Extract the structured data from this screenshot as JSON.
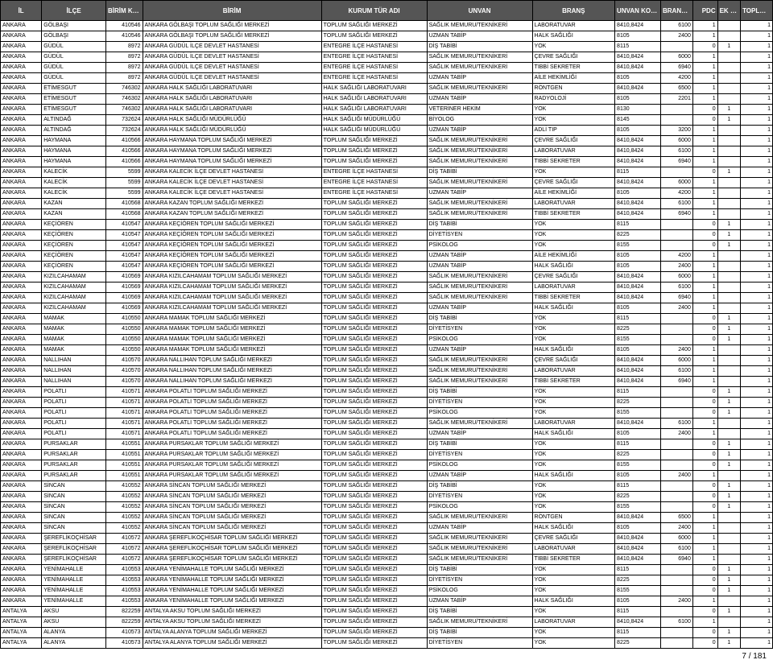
{
  "page_number": "7 / 181",
  "headers": [
    "İL",
    "İLÇE",
    "BİRİM KODU",
    "BİRİM",
    "KURUM TÜR ADI",
    "UNVAN",
    "BRANŞ",
    "UNVAN KODU",
    "BRANŞ KODU",
    "PDC",
    "EK PDC*",
    "TOPLAM PDC"
  ],
  "rows": [
    [
      "ANKARA",
      "GÖLBAŞI",
      "410546",
      "ANKARA GÖLBAŞI TOPLUM SAĞLIĞI MERKEZİ",
      "TOPLUM SAĞLIĞI MERKEZİ",
      "SAĞLIK MEMURU/TEKNİKERİ",
      "LABORATUVAR",
      "8410,8424",
      "6100",
      "1",
      "",
      "1"
    ],
    [
      "ANKARA",
      "GÖLBAŞI",
      "410546",
      "ANKARA GÖLBAŞI TOPLUM SAĞLIĞI MERKEZİ",
      "TOPLUM SAĞLIĞI MERKEZİ",
      "UZMAN TABİP",
      "HALK SAĞLIĞI",
      "8105",
      "2400",
      "1",
      "",
      "1"
    ],
    [
      "ANKARA",
      "GÜDÜL",
      "8972",
      "ANKARA GÜDÜL İLÇE DEVLET HASTANESİ",
      "ENTEGRE İLÇE HASTANESİ",
      "DİŞ TABİBİ",
      "YOK",
      "8115",
      "",
      "0",
      "1",
      "1"
    ],
    [
      "ANKARA",
      "GÜDÜL",
      "8972",
      "ANKARA GÜDÜL İLÇE DEVLET HASTANESİ",
      "ENTEGRE İLÇE HASTANESİ",
      "SAĞLIK MEMURU/TEKNİKERİ",
      "ÇEVRE SAĞLIĞI",
      "8410,8424",
      "6000",
      "1",
      "",
      "1"
    ],
    [
      "ANKARA",
      "GÜDÜL",
      "8972",
      "ANKARA GÜDÜL İLÇE DEVLET HASTANESİ",
      "ENTEGRE İLÇE HASTANESİ",
      "SAĞLIK MEMURU/TEKNİKERİ",
      "TIBBİ SEKRETER",
      "8410,8424",
      "6940",
      "1",
      "",
      "1"
    ],
    [
      "ANKARA",
      "GÜDÜL",
      "8972",
      "ANKARA GÜDÜL İLÇE DEVLET HASTANESİ",
      "ENTEGRE İLÇE HASTANESİ",
      "UZMAN TABİP",
      "AİLE HEKİMLİĞİ",
      "8105",
      "4200",
      "1",
      "",
      "1"
    ],
    [
      "ANKARA",
      "ETİMESGUT",
      "746302",
      "ANKARA HALK SAĞLIĞI LABORATUVARI",
      "HALK SAĞLIĞI LABORATUVARI",
      "SAĞLIK MEMURU/TEKNİKERİ",
      "RÖNTGEN",
      "8410,8424",
      "6500",
      "1",
      "",
      "1"
    ],
    [
      "ANKARA",
      "ETİMESGUT",
      "746302",
      "ANKARA HALK SAĞLIĞI LABORATUVARI",
      "HALK SAĞLIĞI LABORATUVARI",
      "UZMAN TABİP",
      "RADYOLOJİ",
      "8105",
      "2201",
      "1",
      "",
      "1"
    ],
    [
      "ANKARA",
      "ETİMESGUT",
      "746302",
      "ANKARA HALK SAĞLIĞI LABORATUVARI",
      "HALK SAĞLIĞI LABORATUVARI",
      "VETERİNER HEKİM",
      "YOK",
      "8130",
      "",
      "0",
      "1",
      "1"
    ],
    [
      "ANKARA",
      "ALTINDAĞ",
      "732624",
      "ANKARA HALK SAĞLIĞI MÜDÜRLÜĞÜ",
      "HALK SAĞLIĞI MÜDÜRLÜĞÜ",
      "BİYOLOG",
      "YOK",
      "8145",
      "",
      "0",
      "1",
      "1"
    ],
    [
      "ANKARA",
      "ALTINDAĞ",
      "732624",
      "ANKARA HALK SAĞLIĞI MÜDÜRLÜĞÜ",
      "HALK SAĞLIĞI MÜDÜRLÜĞÜ",
      "UZMAN TABİP",
      "ADLİ TIP",
      "8105",
      "3200",
      "1",
      "",
      "1"
    ],
    [
      "ANKARA",
      "HAYMANA",
      "410566",
      "ANKARA HAYMANA TOPLUM SAĞLIĞI MERKEZİ",
      "TOPLUM SAĞLIĞI MERKEZİ",
      "SAĞLIK MEMURU/TEKNİKERİ",
      "ÇEVRE SAĞLIĞI",
      "8410,8424",
      "6000",
      "1",
      "",
      "1"
    ],
    [
      "ANKARA",
      "HAYMANA",
      "410566",
      "ANKARA HAYMANA TOPLUM SAĞLIĞI MERKEZİ",
      "TOPLUM SAĞLIĞI MERKEZİ",
      "SAĞLIK MEMURU/TEKNİKERİ",
      "LABORATUVAR",
      "8410,8424",
      "6100",
      "1",
      "",
      "1"
    ],
    [
      "ANKARA",
      "HAYMANA",
      "410566",
      "ANKARA HAYMANA TOPLUM SAĞLIĞI MERKEZİ",
      "TOPLUM SAĞLIĞI MERKEZİ",
      "SAĞLIK MEMURU/TEKNİKERİ",
      "TIBBİ SEKRETER",
      "8410,8424",
      "6940",
      "1",
      "",
      "1"
    ],
    [
      "ANKARA",
      "KALECİK",
      "5599",
      "ANKARA KALECİK İLÇE DEVLET HASTANESİ",
      "ENTEGRE İLÇE HASTANESİ",
      "DİŞ TABİBİ",
      "YOK",
      "8115",
      "",
      "0",
      "1",
      "1"
    ],
    [
      "ANKARA",
      "KALECİK",
      "5599",
      "ANKARA KALECİK İLÇE DEVLET HASTANESİ",
      "ENTEGRE İLÇE HASTANESİ",
      "SAĞLIK MEMURU/TEKNİKERİ",
      "ÇEVRE SAĞLIĞI",
      "8410,8424",
      "6000",
      "1",
      "",
      "1"
    ],
    [
      "ANKARA",
      "KALECİK",
      "5599",
      "ANKARA KALECİK İLÇE DEVLET HASTANESİ",
      "ENTEGRE İLÇE HASTANESİ",
      "UZMAN TABİP",
      "AİLE HEKİMLİĞİ",
      "8105",
      "4200",
      "1",
      "",
      "1"
    ],
    [
      "ANKARA",
      "KAZAN",
      "410568",
      "ANKARA KAZAN TOPLUM SAĞLIĞI MERKEZİ",
      "TOPLUM SAĞLIĞI MERKEZİ",
      "SAĞLIK MEMURU/TEKNİKERİ",
      "LABORATUVAR",
      "8410,8424",
      "6100",
      "1",
      "",
      "1"
    ],
    [
      "ANKARA",
      "KAZAN",
      "410568",
      "ANKARA KAZAN TOPLUM SAĞLIĞI MERKEZİ",
      "TOPLUM SAĞLIĞI MERKEZİ",
      "SAĞLIK MEMURU/TEKNİKERİ",
      "TIBBİ SEKRETER",
      "8410,8424",
      "6940",
      "1",
      "",
      "1"
    ],
    [
      "ANKARA",
      "KEÇİÖREN",
      "410547",
      "ANKARA KEÇİÖREN TOPLUM SAĞLIĞI MERKEZİ",
      "TOPLUM SAĞLIĞI MERKEZİ",
      "DİŞ TABİBİ",
      "YOK",
      "8115",
      "",
      "0",
      "1",
      "1"
    ],
    [
      "ANKARA",
      "KEÇİÖREN",
      "410547",
      "ANKARA KEÇİÖREN TOPLUM SAĞLIĞI MERKEZİ",
      "TOPLUM SAĞLIĞI MERKEZİ",
      "DİYETİSYEN",
      "YOK",
      "8225",
      "",
      "0",
      "1",
      "1"
    ],
    [
      "ANKARA",
      "KEÇİÖREN",
      "410547",
      "ANKARA KEÇİÖREN TOPLUM SAĞLIĞI MERKEZİ",
      "TOPLUM SAĞLIĞI MERKEZİ",
      "PSİKOLOG",
      "YOK",
      "8155",
      "",
      "0",
      "1",
      "1"
    ],
    [
      "ANKARA",
      "KEÇİÖREN",
      "410547",
      "ANKARA KEÇİÖREN TOPLUM SAĞLIĞI MERKEZİ",
      "TOPLUM SAĞLIĞI MERKEZİ",
      "UZMAN TABİP",
      "AİLE HEKİMLİĞİ",
      "8105",
      "4200",
      "1",
      "",
      "1"
    ],
    [
      "ANKARA",
      "KEÇİÖREN",
      "410547",
      "ANKARA KEÇİÖREN TOPLUM SAĞLIĞI MERKEZİ",
      "TOPLUM SAĞLIĞI MERKEZİ",
      "UZMAN TABİP",
      "HALK SAĞLIĞI",
      "8105",
      "2400",
      "1",
      "",
      "1"
    ],
    [
      "ANKARA",
      "KIZILCAHAMAM",
      "410569",
      "ANKARA KIZILCAHAMAM TOPLUM SAĞLIĞI MERKEZİ",
      "TOPLUM SAĞLIĞI MERKEZİ",
      "SAĞLIK MEMURU/TEKNİKERİ",
      "ÇEVRE SAĞLIĞI",
      "8410,8424",
      "6000",
      "1",
      "",
      "1"
    ],
    [
      "ANKARA",
      "KIZILCAHAMAM",
      "410569",
      "ANKARA KIZILCAHAMAM TOPLUM SAĞLIĞI MERKEZİ",
      "TOPLUM SAĞLIĞI MERKEZİ",
      "SAĞLIK MEMURU/TEKNİKERİ",
      "LABORATUVAR",
      "8410,8424",
      "6100",
      "1",
      "",
      "1"
    ],
    [
      "ANKARA",
      "KIZILCAHAMAM",
      "410569",
      "ANKARA KIZILCAHAMAM TOPLUM SAĞLIĞI MERKEZİ",
      "TOPLUM SAĞLIĞI MERKEZİ",
      "SAĞLIK MEMURU/TEKNİKERİ",
      "TIBBİ SEKRETER",
      "8410,8424",
      "6940",
      "1",
      "",
      "1"
    ],
    [
      "ANKARA",
      "KIZILCAHAMAM",
      "410569",
      "ANKARA KIZILCAHAMAM TOPLUM SAĞLIĞI MERKEZİ",
      "TOPLUM SAĞLIĞI MERKEZİ",
      "UZMAN TABİP",
      "HALK SAĞLIĞI",
      "8105",
      "2400",
      "1",
      "",
      "1"
    ],
    [
      "ANKARA",
      "MAMAK",
      "410550",
      "ANKARA MAMAK TOPLUM SAĞLIĞI MERKEZİ",
      "TOPLUM SAĞLIĞI MERKEZİ",
      "DİŞ TABİBİ",
      "YOK",
      "8115",
      "",
      "0",
      "1",
      "1"
    ],
    [
      "ANKARA",
      "MAMAK",
      "410550",
      "ANKARA MAMAK TOPLUM SAĞLIĞI MERKEZİ",
      "TOPLUM SAĞLIĞI MERKEZİ",
      "DİYETİSYEN",
      "YOK",
      "8225",
      "",
      "0",
      "1",
      "1"
    ],
    [
      "ANKARA",
      "MAMAK",
      "410550",
      "ANKARA MAMAK TOPLUM SAĞLIĞI MERKEZİ",
      "TOPLUM SAĞLIĞI MERKEZİ",
      "PSİKOLOG",
      "YOK",
      "8155",
      "",
      "0",
      "1",
      "1"
    ],
    [
      "ANKARA",
      "MAMAK",
      "410550",
      "ANKARA MAMAK TOPLUM SAĞLIĞI MERKEZİ",
      "TOPLUM SAĞLIĞI MERKEZİ",
      "UZMAN TABİP",
      "HALK SAĞLIĞI",
      "8105",
      "2400",
      "1",
      "",
      "1"
    ],
    [
      "ANKARA",
      "NALLIHAN",
      "410570",
      "ANKARA NALLIHAN TOPLUM SAĞLIĞI MERKEZİ",
      "TOPLUM SAĞLIĞI MERKEZİ",
      "SAĞLIK MEMURU/TEKNİKERİ",
      "ÇEVRE SAĞLIĞI",
      "8410,8424",
      "6000",
      "1",
      "",
      "1"
    ],
    [
      "ANKARA",
      "NALLIHAN",
      "410570",
      "ANKARA NALLIHAN TOPLUM SAĞLIĞI MERKEZİ",
      "TOPLUM SAĞLIĞI MERKEZİ",
      "SAĞLIK MEMURU/TEKNİKERİ",
      "LABORATUVAR",
      "8410,8424",
      "6100",
      "1",
      "",
      "1"
    ],
    [
      "ANKARA",
      "NALLIHAN",
      "410570",
      "ANKARA NALLIHAN TOPLUM SAĞLIĞI MERKEZİ",
      "TOPLUM SAĞLIĞI MERKEZİ",
      "SAĞLIK MEMURU/TEKNİKERİ",
      "TIBBİ SEKRETER",
      "8410,8424",
      "6940",
      "1",
      "",
      "1"
    ],
    [
      "ANKARA",
      "POLATLI",
      "410571",
      "ANKARA POLATLI TOPLUM SAĞLIĞI MERKEZİ",
      "TOPLUM SAĞLIĞI MERKEZİ",
      "DİŞ TABİBİ",
      "YOK",
      "8115",
      "",
      "0",
      "1",
      "1"
    ],
    [
      "ANKARA",
      "POLATLI",
      "410571",
      "ANKARA POLATLI TOPLUM SAĞLIĞI MERKEZİ",
      "TOPLUM SAĞLIĞI MERKEZİ",
      "DİYETİSYEN",
      "YOK",
      "8225",
      "",
      "0",
      "1",
      "1"
    ],
    [
      "ANKARA",
      "POLATLI",
      "410571",
      "ANKARA POLATLI TOPLUM SAĞLIĞI MERKEZİ",
      "TOPLUM SAĞLIĞI MERKEZİ",
      "PSİKOLOG",
      "YOK",
      "8155",
      "",
      "0",
      "1",
      "1"
    ],
    [
      "ANKARA",
      "POLATLI",
      "410571",
      "ANKARA POLATLI TOPLUM SAĞLIĞI MERKEZİ",
      "TOPLUM SAĞLIĞI MERKEZİ",
      "SAĞLIK MEMURU/TEKNİKERİ",
      "LABORATUVAR",
      "8410,8424",
      "6100",
      "1",
      "",
      "1"
    ],
    [
      "ANKARA",
      "POLATLI",
      "410571",
      "ANKARA POLATLI TOPLUM SAĞLIĞI MERKEZİ",
      "TOPLUM SAĞLIĞI MERKEZİ",
      "UZMAN TABİP",
      "HALK SAĞLIĞI",
      "8105",
      "2400",
      "1",
      "",
      "1"
    ],
    [
      "ANKARA",
      "PURSAKLAR",
      "410551",
      "ANKARA PURSAKLAR TOPLUM SAĞLIĞI MERKEZİ",
      "TOPLUM SAĞLIĞI MERKEZİ",
      "DİŞ TABİBİ",
      "YOK",
      "8115",
      "",
      "0",
      "1",
      "1"
    ],
    [
      "ANKARA",
      "PURSAKLAR",
      "410551",
      "ANKARA PURSAKLAR TOPLUM SAĞLIĞI MERKEZİ",
      "TOPLUM SAĞLIĞI MERKEZİ",
      "DİYETİSYEN",
      "YOK",
      "8225",
      "",
      "0",
      "1",
      "1"
    ],
    [
      "ANKARA",
      "PURSAKLAR",
      "410551",
      "ANKARA PURSAKLAR TOPLUM SAĞLIĞI MERKEZİ",
      "TOPLUM SAĞLIĞI MERKEZİ",
      "PSİKOLOG",
      "YOK",
      "8155",
      "",
      "0",
      "1",
      "1"
    ],
    [
      "ANKARA",
      "PURSAKLAR",
      "410551",
      "ANKARA PURSAKLAR TOPLUM SAĞLIĞI MERKEZİ",
      "TOPLUM SAĞLIĞI MERKEZİ",
      "UZMAN TABİP",
      "HALK SAĞLIĞI",
      "8105",
      "2400",
      "1",
      "",
      "1"
    ],
    [
      "ANKARA",
      "SİNCAN",
      "410552",
      "ANKARA SİNCAN TOPLUM SAĞLIĞI MERKEZİ",
      "TOPLUM SAĞLIĞI MERKEZİ",
      "DİŞ TABİBİ",
      "YOK",
      "8115",
      "",
      "0",
      "1",
      "1"
    ],
    [
      "ANKARA",
      "SİNCAN",
      "410552",
      "ANKARA SİNCAN TOPLUM SAĞLIĞI MERKEZİ",
      "TOPLUM SAĞLIĞI MERKEZİ",
      "DİYETİSYEN",
      "YOK",
      "8225",
      "",
      "0",
      "1",
      "1"
    ],
    [
      "ANKARA",
      "SİNCAN",
      "410552",
      "ANKARA SİNCAN TOPLUM SAĞLIĞI MERKEZİ",
      "TOPLUM SAĞLIĞI MERKEZİ",
      "PSİKOLOG",
      "YOK",
      "8155",
      "",
      "0",
      "1",
      "1"
    ],
    [
      "ANKARA",
      "SİNCAN",
      "410552",
      "ANKARA SİNCAN TOPLUM SAĞLIĞI MERKEZİ",
      "TOPLUM SAĞLIĞI MERKEZİ",
      "SAĞLIK MEMURU/TEKNİKERİ",
      "RÖNTGEN",
      "8410,8424",
      "6500",
      "1",
      "",
      "1"
    ],
    [
      "ANKARA",
      "SİNCAN",
      "410552",
      "ANKARA SİNCAN TOPLUM SAĞLIĞI MERKEZİ",
      "TOPLUM SAĞLIĞI MERKEZİ",
      "UZMAN TABİP",
      "HALK SAĞLIĞI",
      "8105",
      "2400",
      "1",
      "",
      "1"
    ],
    [
      "ANKARA",
      "ŞEREFLİKOÇHİSAR",
      "410572",
      "ANKARA ŞEREFLİKOÇHİSAR TOPLUM SAĞLIĞI MERKEZİ",
      "TOPLUM SAĞLIĞI MERKEZİ",
      "SAĞLIK MEMURU/TEKNİKERİ",
      "ÇEVRE SAĞLIĞI",
      "8410,8424",
      "6000",
      "1",
      "",
      "1"
    ],
    [
      "ANKARA",
      "ŞEREFLİKOÇHİSAR",
      "410572",
      "ANKARA ŞEREFLİKOÇHİSAR TOPLUM SAĞLIĞI MERKEZİ",
      "TOPLUM SAĞLIĞI MERKEZİ",
      "SAĞLIK MEMURU/TEKNİKERİ",
      "LABORATUVAR",
      "8410,8424",
      "6100",
      "1",
      "",
      "1"
    ],
    [
      "ANKARA",
      "ŞEREFLİKOÇHİSAR",
      "410572",
      "ANKARA ŞEREFLİKOÇHİSAR TOPLUM SAĞLIĞI MERKEZİ",
      "TOPLUM SAĞLIĞI MERKEZİ",
      "SAĞLIK MEMURU/TEKNİKERİ",
      "TIBBİ SEKRETER",
      "8410,8424",
      "6940",
      "1",
      "",
      "1"
    ],
    [
      "ANKARA",
      "YENİMAHALLE",
      "410553",
      "ANKARA YENİMAHALLE TOPLUM SAĞLIĞI MERKEZİ",
      "TOPLUM SAĞLIĞI MERKEZİ",
      "DİŞ TABİBİ",
      "YOK",
      "8115",
      "",
      "0",
      "1",
      "1"
    ],
    [
      "ANKARA",
      "YENİMAHALLE",
      "410553",
      "ANKARA YENİMAHALLE TOPLUM SAĞLIĞI MERKEZİ",
      "TOPLUM SAĞLIĞI MERKEZİ",
      "DİYETİSYEN",
      "YOK",
      "8225",
      "",
      "0",
      "1",
      "1"
    ],
    [
      "ANKARA",
      "YENİMAHALLE",
      "410553",
      "ANKARA YENİMAHALLE TOPLUM SAĞLIĞI MERKEZİ",
      "TOPLUM SAĞLIĞI MERKEZİ",
      "PSİKOLOG",
      "YOK",
      "8155",
      "",
      "0",
      "1",
      "1"
    ],
    [
      "ANKARA",
      "YENİMAHALLE",
      "410553",
      "ANKARA YENİMAHALLE TOPLUM SAĞLIĞI MERKEZİ",
      "TOPLUM SAĞLIĞI MERKEZİ",
      "UZMAN TABİP",
      "HALK SAĞLIĞI",
      "8105",
      "2400",
      "1",
      "",
      "1"
    ],
    [
      "ANTALYA",
      "AKSU",
      "822259",
      "ANTALYA AKSU TOPLUM SAĞLIĞI MERKEZİ",
      "TOPLUM SAĞLIĞI MERKEZİ",
      "DİŞ TABİBİ",
      "YOK",
      "8115",
      "",
      "0",
      "1",
      "1"
    ],
    [
      "ANTALYA",
      "AKSU",
      "822259",
      "ANTALYA AKSU TOPLUM SAĞLIĞI MERKEZİ",
      "TOPLUM SAĞLIĞI MERKEZİ",
      "SAĞLIK MEMURU/TEKNİKERİ",
      "LABORATUVAR",
      "8410,8424",
      "6100",
      "1",
      "",
      "1"
    ],
    [
      "ANTALYA",
      "ALANYA",
      "410573",
      "ANTALYA ALANYA TOPLUM SAĞLIĞI MERKEZİ",
      "TOPLUM SAĞLIĞI MERKEZİ",
      "DİŞ TABİBİ",
      "YOK",
      "8115",
      "",
      "0",
      "1",
      "1"
    ],
    [
      "ANTALYA",
      "ALANYA",
      "410573",
      "ANTALYA ALANYA TOPLUM SAĞLIĞI MERKEZİ",
      "TOPLUM SAĞLIĞI MERKEZİ",
      "DİYETİSYEN",
      "YOK",
      "8225",
      "",
      "0",
      "1",
      "1"
    ]
  ],
  "col_classes": [
    "c-il",
    "c-ilce",
    "c-bk",
    "c-birim",
    "c-kurum",
    "c-unvan",
    "c-brans",
    "c-uk",
    "c-bkk",
    "c-pdc",
    "c-ek",
    "c-top"
  ]
}
